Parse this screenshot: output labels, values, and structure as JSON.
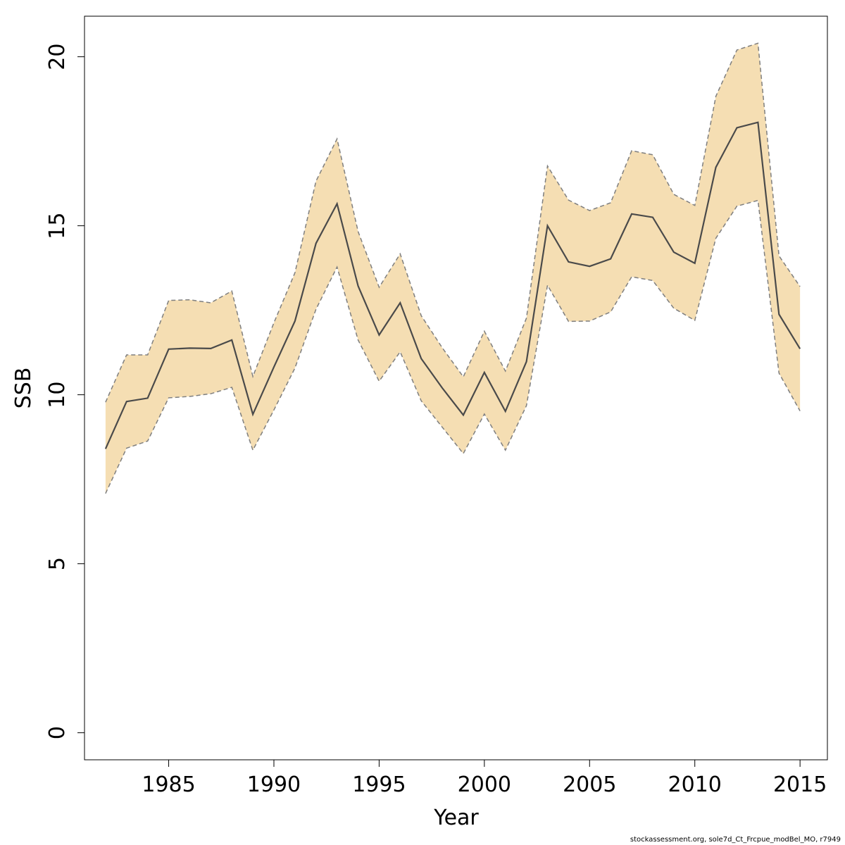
{
  "chart_data": {
    "type": "line",
    "title": "",
    "xlabel": "Year",
    "ylabel": "SSB",
    "xlim": [
      1981,
      2016.3
    ],
    "ylim": [
      -0.8,
      21.2
    ],
    "xticks": [
      1985,
      1990,
      1995,
      2000,
      2005,
      2010,
      2015
    ],
    "yticks": [
      0,
      5,
      10,
      15,
      20
    ],
    "grid": false,
    "legend": "none",
    "x": [
      1982,
      1983,
      1984,
      1985,
      1986,
      1987,
      1988,
      1989,
      1990,
      1991,
      1992,
      1993,
      1994,
      1995,
      1996,
      1997,
      1998,
      1999,
      2000,
      2001,
      2002,
      2003,
      2004,
      2005,
      2006,
      2007,
      2008,
      2009,
      2010,
      2011,
      2012,
      2013,
      2014,
      2015
    ],
    "series": [
      {
        "role": "estimate",
        "values": [
          8.4,
          9.8,
          9.9,
          11.35,
          11.38,
          11.37,
          11.62,
          9.42,
          10.82,
          12.18,
          14.48,
          15.65,
          13.22,
          11.77,
          12.72,
          11.07,
          10.2,
          9.4,
          10.66,
          9.51,
          10.98,
          15.0,
          13.93,
          13.8,
          14.02,
          15.35,
          15.25,
          14.22,
          13.89,
          16.73,
          17.9,
          18.06,
          12.38,
          11.36
        ]
      },
      {
        "role": "upper",
        "values": [
          9.78,
          11.18,
          11.18,
          12.79,
          12.81,
          12.72,
          13.07,
          10.54,
          12.13,
          13.61,
          16.32,
          17.57,
          14.83,
          13.18,
          14.17,
          12.34,
          11.39,
          10.53,
          11.88,
          10.7,
          12.27,
          16.77,
          15.76,
          15.45,
          15.68,
          17.22,
          17.1,
          15.93,
          15.6,
          18.83,
          20.2,
          20.4,
          14.11,
          13.2
        ]
      },
      {
        "role": "lower",
        "values": [
          7.08,
          8.42,
          8.63,
          9.91,
          9.95,
          10.03,
          10.22,
          8.36,
          9.55,
          10.79,
          12.53,
          13.78,
          11.62,
          10.4,
          11.27,
          9.82,
          9.04,
          8.26,
          9.43,
          8.36,
          9.68,
          13.24,
          12.17,
          12.18,
          12.45,
          13.49,
          13.38,
          12.56,
          12.2,
          14.63,
          15.58,
          15.75,
          10.64,
          9.52
        ]
      }
    ],
    "colors": {
      "band_fill": "#f5deb3",
      "band_edge": "#7f7f7f",
      "line": "#4a4a4a",
      "axis": "#000000"
    }
  },
  "footnote": "stockassessment.org, sole7d_Ct_Frcpue_modBel_MO, r7949"
}
